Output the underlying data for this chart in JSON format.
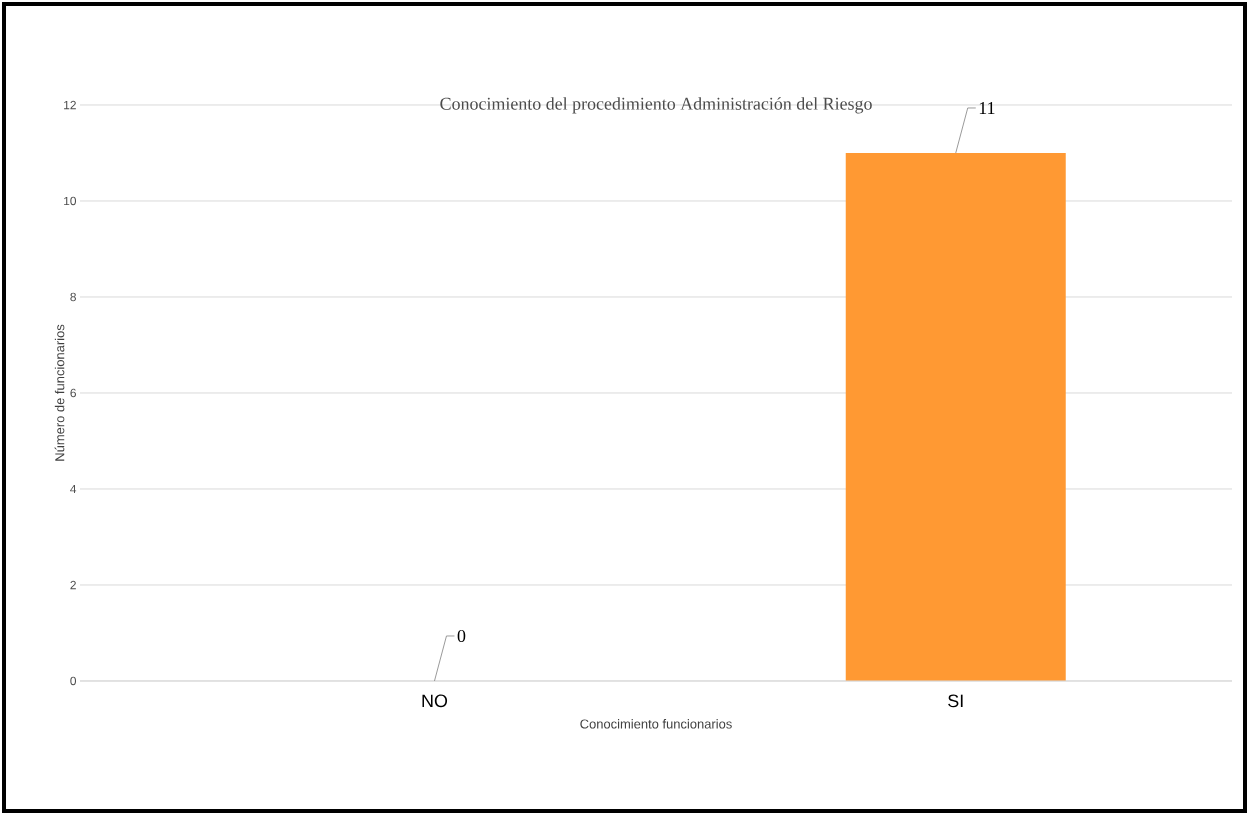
{
  "chart_data": {
    "type": "bar",
    "title": "Conocimiento del procedimiento Administración del Riesgo",
    "xlabel": "Conocimiento funcionarios",
    "ylabel": "Número de funcionarios",
    "categories": [
      "NO",
      "SI"
    ],
    "values": [
      0,
      11
    ],
    "color": "#ff9933",
    "ylim": [
      0,
      12
    ],
    "yticks": [
      0,
      2,
      4,
      6,
      8,
      10,
      12
    ],
    "grid": "y",
    "data_labels": true
  }
}
